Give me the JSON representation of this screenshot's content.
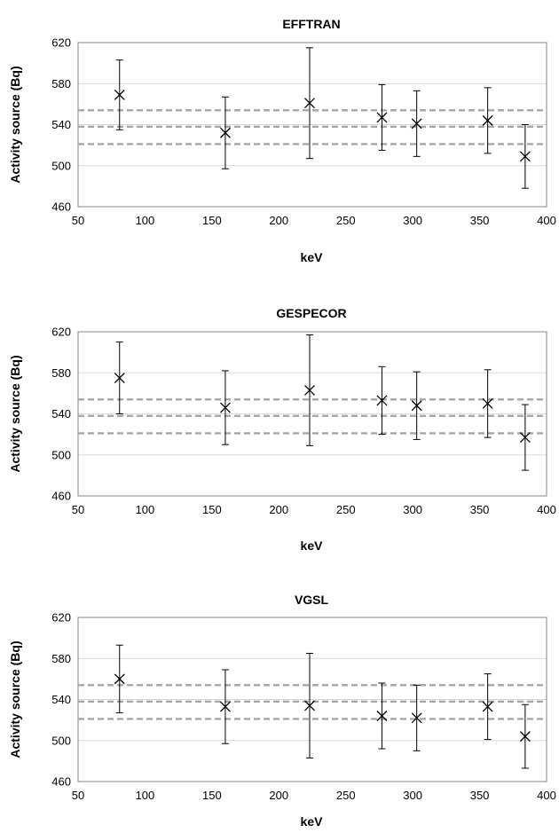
{
  "chart_data": [
    {
      "type": "scatter",
      "title": "EFFTRAN",
      "xlabel": "keV",
      "ylabel": "Activity source (Bq)",
      "xlim": [
        50,
        400
      ],
      "ylim": [
        460,
        620
      ],
      "xticks": [
        50,
        100,
        150,
        200,
        250,
        300,
        350,
        400
      ],
      "yticks": [
        460,
        500,
        540,
        580,
        620
      ],
      "grid": "horizontal",
      "marker": "x",
      "reference_lines": [
        554,
        538,
        521
      ],
      "points": [
        {
          "x": 81,
          "y": 569,
          "err": 34
        },
        {
          "x": 160,
          "y": 532,
          "err": 35
        },
        {
          "x": 223,
          "y": 561,
          "err": 54
        },
        {
          "x": 277,
          "y": 547,
          "err": 32
        },
        {
          "x": 303,
          "y": 541,
          "err": 32
        },
        {
          "x": 356,
          "y": 544,
          "err": 32
        },
        {
          "x": 384,
          "y": 509,
          "err": 31
        }
      ]
    },
    {
      "type": "scatter",
      "title": "GESPECOR",
      "xlabel": "keV",
      "ylabel": "Activity source (Bq)",
      "xlim": [
        50,
        400
      ],
      "ylim": [
        460,
        620
      ],
      "xticks": [
        50,
        100,
        150,
        200,
        250,
        300,
        350,
        400
      ],
      "yticks": [
        460,
        500,
        540,
        580,
        620
      ],
      "grid": "horizontal",
      "marker": "x",
      "reference_lines": [
        554,
        538,
        521
      ],
      "points": [
        {
          "x": 81,
          "y": 575,
          "err": 35
        },
        {
          "x": 160,
          "y": 546,
          "err": 36
        },
        {
          "x": 223,
          "y": 563,
          "err": 54
        },
        {
          "x": 277,
          "y": 553,
          "err": 33
        },
        {
          "x": 303,
          "y": 548,
          "err": 33
        },
        {
          "x": 356,
          "y": 550,
          "err": 33
        },
        {
          "x": 384,
          "y": 517,
          "err": 32
        }
      ]
    },
    {
      "type": "scatter",
      "title": "VGSL",
      "xlabel": "keV",
      "ylabel": "Activity source (Bq)",
      "xlim": [
        50,
        400
      ],
      "ylim": [
        460,
        620
      ],
      "xticks": [
        50,
        100,
        150,
        200,
        250,
        300,
        350,
        400
      ],
      "yticks": [
        460,
        500,
        540,
        580,
        620
      ],
      "grid": "horizontal",
      "marker": "x",
      "reference_lines": [
        554,
        538,
        521
      ],
      "points": [
        {
          "x": 81,
          "y": 560,
          "err": 33
        },
        {
          "x": 160,
          "y": 533,
          "err": 36
        },
        {
          "x": 223,
          "y": 534,
          "err": 51
        },
        {
          "x": 277,
          "y": 524,
          "err": 32
        },
        {
          "x": 303,
          "y": 522,
          "err": 32
        },
        {
          "x": 356,
          "y": 533,
          "err": 32
        },
        {
          "x": 384,
          "y": 504,
          "err": 31
        }
      ]
    }
  ],
  "colors": {
    "axis": "#868686",
    "grid": "#d9d9d9",
    "reference_line": "#a6a6a6",
    "marker": "#000000"
  }
}
